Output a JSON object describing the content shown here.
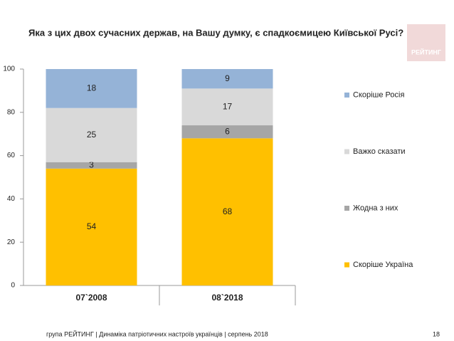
{
  "logo": "РЕЙТИНГ",
  "footer": "група РЕЙТИНГ  | Динаміка патріотичних настроїв українців |  серпень 2018",
  "page_number": "18",
  "chart_data": {
    "type": "stacked-bar",
    "title": "Яка з цих двох сучасних держав, на Вашу думку, є спадкоємицею Київської Русі?",
    "categories": [
      "07`2008",
      "08`2018"
    ],
    "series": [
      {
        "name": "Скоріше Україна",
        "color": "#FFC000",
        "values": [
          54,
          68
        ]
      },
      {
        "name": "Жодна з них",
        "color": "#A6A6A6",
        "values": [
          3,
          6
        ]
      },
      {
        "name": "Важко сказати",
        "color": "#D9D9D9",
        "values": [
          25,
          17
        ]
      },
      {
        "name": "Скоріше Росія",
        "color": "#95B3D7",
        "values": [
          18,
          9
        ]
      }
    ],
    "ylim": [
      0,
      100
    ],
    "yticks": [
      0,
      20,
      40,
      60,
      80,
      100
    ],
    "legend": "right"
  }
}
